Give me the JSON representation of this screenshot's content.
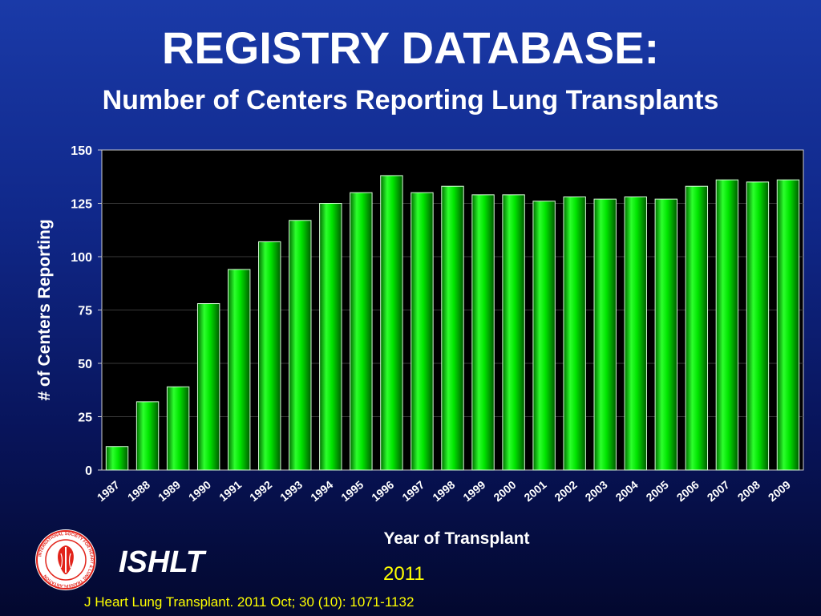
{
  "slide": {
    "title": "REGISTRY DATABASE:",
    "subtitle": "Number of Centers Reporting Lung Transplants",
    "org_name": "ISHLT",
    "year": "2011",
    "citation": "J Heart Lung Transplant. 2011 Oct; 30 (10): 1071-1132",
    "logo_text": "INTERNATIONAL SOCIETY FOR HEART & LUNG TRANSPLANTATION"
  },
  "colors": {
    "bar": "#00ee00",
    "bar_dark": "#008800",
    "plot_bg": "#000000",
    "gridline": "#3a3a3a",
    "accent_text": "#ffff00",
    "logo_red": "#e2231a"
  },
  "chart_data": {
    "type": "bar",
    "categories": [
      "1987",
      "1988",
      "1989",
      "1990",
      "1991",
      "1992",
      "1993",
      "1994",
      "1995",
      "1996",
      "1997",
      "1998",
      "1999",
      "2000",
      "2001",
      "2002",
      "2003",
      "2004",
      "2005",
      "2006",
      "2007",
      "2008",
      "2009"
    ],
    "values": [
      11,
      32,
      39,
      78,
      94,
      107,
      117,
      125,
      130,
      138,
      130,
      133,
      129,
      129,
      126,
      128,
      127,
      128,
      127,
      133,
      136,
      135,
      136
    ],
    "title": "",
    "xlabel": "Year of Transplant",
    "ylabel": "# of Centers Reporting",
    "ylim": [
      0,
      150
    ],
    "yticks": [
      0,
      25,
      50,
      75,
      100,
      125,
      150
    ],
    "grid": true,
    "legend": "none"
  }
}
